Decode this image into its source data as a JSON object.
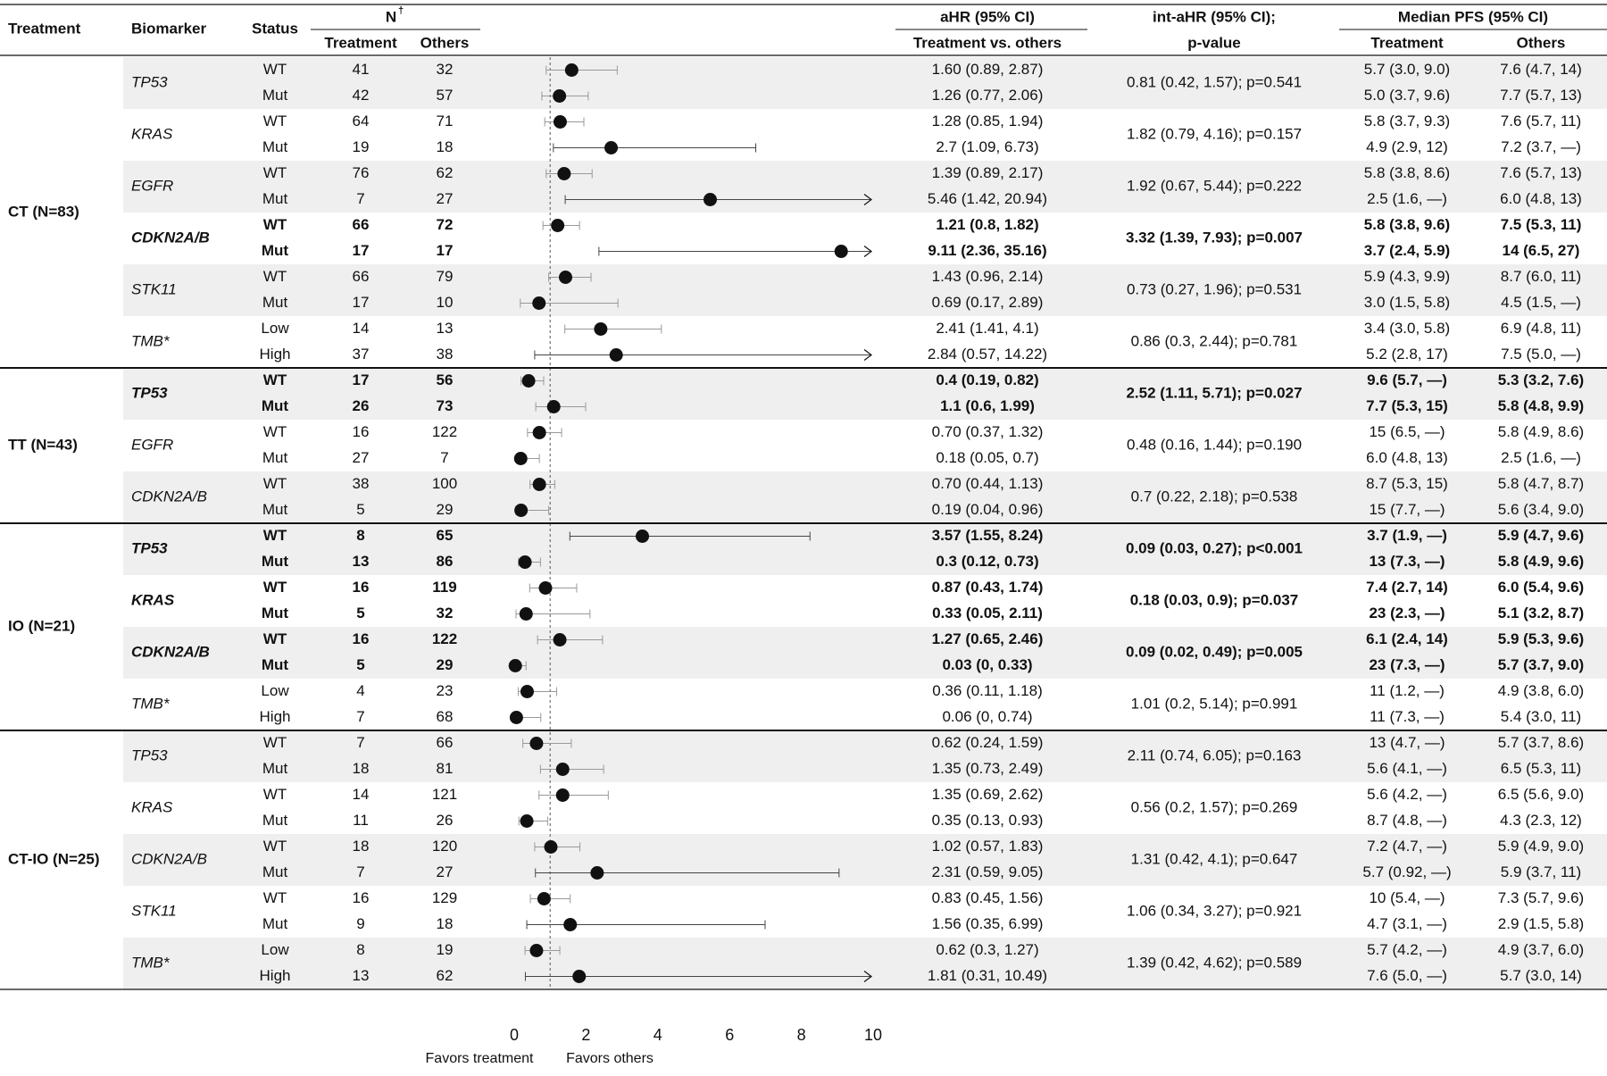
{
  "headers": {
    "treatment": "Treatment",
    "biomarker": "Biomarker",
    "status": "Status",
    "n": "N",
    "n_sup": "†",
    "n_treatment": "Treatment",
    "n_others": "Others",
    "ahr": "aHR (95% CI)",
    "ahr_sub": "Treatment vs. others",
    "intahr": "int-aHR (95% CI);",
    "intahr_sub": "p-value",
    "pfs": "Median PFS (95% CI)",
    "pfs_treatment": "Treatment",
    "pfs_others": "Others"
  },
  "chart_data": {
    "type": "forest",
    "title": "",
    "x_range": [
      0,
      10
    ],
    "x_ticks": [
      "0",
      "2",
      "4",
      "6",
      "8",
      "10"
    ],
    "reference_line": 1,
    "xlabel_left": "Favors treatment",
    "xlabel_right": "Favors others",
    "groups": [
      {
        "label": "CT (N=83)",
        "biomarkers": [
          {
            "name": "TP53",
            "bold": false,
            "int_ahr": "0.81 (0.42, 1.57); p=0.541",
            "rows": [
              {
                "status": "WT",
                "n_t": "41",
                "n_o": "32",
                "ahr": "1.60 (0.89, 2.87)",
                "est": 1.6,
                "lo": 0.89,
                "hi": 2.87,
                "pfs_t": "5.7 (3.0, 9.0)",
                "pfs_o": "7.6 (4.7, 14)"
              },
              {
                "status": "Mut",
                "n_t": "42",
                "n_o": "57",
                "ahr": "1.26 (0.77, 2.06)",
                "est": 1.26,
                "lo": 0.77,
                "hi": 2.06,
                "pfs_t": "5.0 (3.7, 9.6)",
                "pfs_o": "7.7 (5.7, 13)"
              }
            ]
          },
          {
            "name": "KRAS",
            "bold": false,
            "int_ahr": "1.82 (0.79, 4.16); p=0.157",
            "rows": [
              {
                "status": "WT",
                "n_t": "64",
                "n_o": "71",
                "ahr": "1.28 (0.85, 1.94)",
                "est": 1.28,
                "lo": 0.85,
                "hi": 1.94,
                "pfs_t": "5.8 (3.7, 9.3)",
                "pfs_o": "7.6 (5.7, 11)"
              },
              {
                "status": "Mut",
                "n_t": "19",
                "n_o": "18",
                "ahr": "2.7 (1.09, 6.73)",
                "est": 2.7,
                "lo": 1.09,
                "hi": 6.73,
                "pfs_t": "4.9 (2.9, 12)",
                "pfs_o": "7.2 (3.7, —)"
              }
            ]
          },
          {
            "name": "EGFR",
            "bold": false,
            "int_ahr": "1.92 (0.67, 5.44); p=0.222",
            "rows": [
              {
                "status": "WT",
                "n_t": "76",
                "n_o": "62",
                "ahr": "1.39 (0.89, 2.17)",
                "est": 1.39,
                "lo": 0.89,
                "hi": 2.17,
                "pfs_t": "5.8 (3.8, 8.6)",
                "pfs_o": "7.6 (5.7, 13)"
              },
              {
                "status": "Mut",
                "n_t": "7",
                "n_o": "27",
                "ahr": "5.46 (1.42, 20.94)",
                "est": 5.46,
                "lo": 1.42,
                "hi": 20.94,
                "pfs_t": "2.5 (1.6, —)",
                "pfs_o": "6.0 (4.8, 13)"
              }
            ]
          },
          {
            "name": "CDKN2A/B",
            "bold": true,
            "int_ahr": "3.32 (1.39, 7.93); p=0.007",
            "rows": [
              {
                "status": "WT",
                "n_t": "66",
                "n_o": "72",
                "ahr": "1.21 (0.8, 1.82)",
                "est": 1.21,
                "lo": 0.8,
                "hi": 1.82,
                "pfs_t": "5.8 (3.8, 9.6)",
                "pfs_o": "7.5 (5.3, 11)"
              },
              {
                "status": "Mut",
                "n_t": "17",
                "n_o": "17",
                "ahr": "9.11 (2.36, 35.16)",
                "est": 9.11,
                "lo": 2.36,
                "hi": 35.16,
                "pfs_t": "3.7 (2.4, 5.9)",
                "pfs_o": "14 (6.5, 27)"
              }
            ]
          },
          {
            "name": "STK11",
            "bold": false,
            "int_ahr": "0.73 (0.27, 1.96); p=0.531",
            "rows": [
              {
                "status": "WT",
                "n_t": "66",
                "n_o": "79",
                "ahr": "1.43 (0.96, 2.14)",
                "est": 1.43,
                "lo": 0.96,
                "hi": 2.14,
                "pfs_t": "5.9 (4.3, 9.9)",
                "pfs_o": "8.7 (6.0, 11)"
              },
              {
                "status": "Mut",
                "n_t": "17",
                "n_o": "10",
                "ahr": "0.69 (0.17, 2.89)",
                "est": 0.69,
                "lo": 0.17,
                "hi": 2.89,
                "pfs_t": "3.0 (1.5, 5.8)",
                "pfs_o": "4.5 (1.5, —)"
              }
            ]
          },
          {
            "name": "TMB*",
            "bold": false,
            "int_ahr": "0.86 (0.3, 2.44); p=0.781",
            "rows": [
              {
                "status": "Low",
                "n_t": "14",
                "n_o": "13",
                "ahr": "2.41 (1.41, 4.1)",
                "est": 2.41,
                "lo": 1.41,
                "hi": 4.1,
                "pfs_t": "3.4 (3.0, 5.8)",
                "pfs_o": "6.9 (4.8, 11)"
              },
              {
                "status": "High",
                "n_t": "37",
                "n_o": "38",
                "ahr": "2.84 (0.57, 14.22)",
                "est": 2.84,
                "lo": 0.57,
                "hi": 14.22,
                "pfs_t": "5.2 (2.8, 17)",
                "pfs_o": "7.5 (5.0, —)"
              }
            ]
          }
        ]
      },
      {
        "label": "TT (N=43)",
        "biomarkers": [
          {
            "name": "TP53",
            "bold": true,
            "int_ahr": "2.52 (1.11, 5.71); p=0.027",
            "rows": [
              {
                "status": "WT",
                "n_t": "17",
                "n_o": "56",
                "ahr": "0.4 (0.19, 0.82)",
                "est": 0.4,
                "lo": 0.19,
                "hi": 0.82,
                "pfs_t": "9.6 (5.7, —)",
                "pfs_o": "5.3 (3.2, 7.6)"
              },
              {
                "status": "Mut",
                "n_t": "26",
                "n_o": "73",
                "ahr": "1.1 (0.6, 1.99)",
                "est": 1.1,
                "lo": 0.6,
                "hi": 1.99,
                "pfs_t": "7.7 (5.3, 15)",
                "pfs_o": "5.8 (4.8, 9.9)"
              }
            ]
          },
          {
            "name": "EGFR",
            "bold": false,
            "int_ahr": "0.48 (0.16, 1.44); p=0.190",
            "rows": [
              {
                "status": "WT",
                "n_t": "16",
                "n_o": "122",
                "ahr": "0.70 (0.37, 1.32)",
                "est": 0.7,
                "lo": 0.37,
                "hi": 1.32,
                "pfs_t": "15 (6.5, —)",
                "pfs_o": "5.8 (4.9, 8.6)"
              },
              {
                "status": "Mut",
                "n_t": "27",
                "n_o": "7",
                "ahr": "0.18 (0.05, 0.7)",
                "est": 0.18,
                "lo": 0.05,
                "hi": 0.7,
                "pfs_t": "6.0 (4.8, 13)",
                "pfs_o": "2.5 (1.6, —)"
              }
            ]
          },
          {
            "name": "CDKN2A/B",
            "bold": false,
            "int_ahr": "0.7 (0.22, 2.18); p=0.538",
            "rows": [
              {
                "status": "WT",
                "n_t": "38",
                "n_o": "100",
                "ahr": "0.70 (0.44, 1.13)",
                "est": 0.7,
                "lo": 0.44,
                "hi": 1.13,
                "pfs_t": "8.7 (5.3, 15)",
                "pfs_o": "5.8 (4.7, 8.7)"
              },
              {
                "status": "Mut",
                "n_t": "5",
                "n_o": "29",
                "ahr": "0.19 (0.04, 0.96)",
                "est": 0.19,
                "lo": 0.04,
                "hi": 0.96,
                "pfs_t": "15 (7.7, —)",
                "pfs_o": "5.6 (3.4, 9.0)"
              }
            ]
          }
        ]
      },
      {
        "label": "IO (N=21)",
        "biomarkers": [
          {
            "name": "TP53",
            "bold": true,
            "int_ahr": "0.09 (0.03, 0.27); p<0.001",
            "rows": [
              {
                "status": "WT",
                "n_t": "8",
                "n_o": "65",
                "ahr": "3.57 (1.55, 8.24)",
                "est": 3.57,
                "lo": 1.55,
                "hi": 8.24,
                "pfs_t": "3.7 (1.9, —)",
                "pfs_o": "5.9 (4.7, 9.6)"
              },
              {
                "status": "Mut",
                "n_t": "13",
                "n_o": "86",
                "ahr": "0.3 (0.12, 0.73)",
                "est": 0.3,
                "lo": 0.12,
                "hi": 0.73,
                "pfs_t": "13 (7.3, —)",
                "pfs_o": "5.8 (4.9, 9.6)"
              }
            ]
          },
          {
            "name": "KRAS",
            "bold": true,
            "int_ahr": "0.18 (0.03, 0.9); p=0.037",
            "rows": [
              {
                "status": "WT",
                "n_t": "16",
                "n_o": "119",
                "ahr": "0.87 (0.43, 1.74)",
                "est": 0.87,
                "lo": 0.43,
                "hi": 1.74,
                "pfs_t": "7.4 (2.7, 14)",
                "pfs_o": "6.0 (5.4, 9.6)"
              },
              {
                "status": "Mut",
                "n_t": "5",
                "n_o": "32",
                "ahr": "0.33 (0.05, 2.11)",
                "est": 0.33,
                "lo": 0.05,
                "hi": 2.11,
                "pfs_t": "23 (2.3, —)",
                "pfs_o": "5.1 (3.2, 8.7)"
              }
            ]
          },
          {
            "name": "CDKN2A/B",
            "bold": true,
            "int_ahr": "0.09 (0.02, 0.49); p=0.005",
            "rows": [
              {
                "status": "WT",
                "n_t": "16",
                "n_o": "122",
                "ahr": "1.27 (0.65, 2.46)",
                "est": 1.27,
                "lo": 0.65,
                "hi": 2.46,
                "pfs_t": "6.1 (2.4, 14)",
                "pfs_o": "5.9 (5.3, 9.6)"
              },
              {
                "status": "Mut",
                "n_t": "5",
                "n_o": "29",
                "ahr": "0.03 (0, 0.33)",
                "est": 0.03,
                "lo": 0,
                "hi": 0.33,
                "pfs_t": "23 (7.3, —)",
                "pfs_o": "5.7 (3.7, 9.0)"
              }
            ]
          },
          {
            "name": "TMB*",
            "bold": false,
            "int_ahr": "1.01 (0.2, 5.14); p=0.991",
            "rows": [
              {
                "status": "Low",
                "n_t": "4",
                "n_o": "23",
                "ahr": "0.36 (0.11, 1.18)",
                "est": 0.36,
                "lo": 0.11,
                "hi": 1.18,
                "pfs_t": "11 (1.2, —)",
                "pfs_o": "4.9 (3.8, 6.0)"
              },
              {
                "status": "High",
                "n_t": "7",
                "n_o": "68",
                "ahr": "0.06 (0, 0.74)",
                "est": 0.06,
                "lo": 0,
                "hi": 0.74,
                "pfs_t": "11 (7.3, —)",
                "pfs_o": "5.4 (3.0, 11)"
              }
            ]
          }
        ]
      },
      {
        "label": "CT-IO (N=25)",
        "biomarkers": [
          {
            "name": "TP53",
            "bold": false,
            "int_ahr": "2.11 (0.74, 6.05); p=0.163",
            "rows": [
              {
                "status": "WT",
                "n_t": "7",
                "n_o": "66",
                "ahr": "0.62 (0.24, 1.59)",
                "est": 0.62,
                "lo": 0.24,
                "hi": 1.59,
                "pfs_t": "13 (4.7, —)",
                "pfs_o": "5.7 (3.7, 8.6)"
              },
              {
                "status": "Mut",
                "n_t": "18",
                "n_o": "81",
                "ahr": "1.35 (0.73, 2.49)",
                "est": 1.35,
                "lo": 0.73,
                "hi": 2.49,
                "pfs_t": "5.6 (4.1, —)",
                "pfs_o": "6.5 (5.3, 11)"
              }
            ]
          },
          {
            "name": "KRAS",
            "bold": false,
            "int_ahr": "0.56 (0.2, 1.57); p=0.269",
            "rows": [
              {
                "status": "WT",
                "n_t": "14",
                "n_o": "121",
                "ahr": "1.35 (0.69, 2.62)",
                "est": 1.35,
                "lo": 0.69,
                "hi": 2.62,
                "pfs_t": "5.6 (4.2, —)",
                "pfs_o": "6.5 (5.6, 9.0)"
              },
              {
                "status": "Mut",
                "n_t": "11",
                "n_o": "26",
                "ahr": "0.35 (0.13, 0.93)",
                "est": 0.35,
                "lo": 0.13,
                "hi": 0.93,
                "pfs_t": "8.7 (4.8, —)",
                "pfs_o": "4.3 (2.3, 12)"
              }
            ]
          },
          {
            "name": "CDKN2A/B",
            "bold": false,
            "int_ahr": "1.31 (0.42, 4.1); p=0.647",
            "rows": [
              {
                "status": "WT",
                "n_t": "18",
                "n_o": "120",
                "ahr": "1.02 (0.57, 1.83)",
                "est": 1.02,
                "lo": 0.57,
                "hi": 1.83,
                "pfs_t": "7.2 (4.7, —)",
                "pfs_o": "5.9 (4.9, 9.0)"
              },
              {
                "status": "Mut",
                "n_t": "7",
                "n_o": "27",
                "ahr": "2.31 (0.59, 9.05)",
                "est": 2.31,
                "lo": 0.59,
                "hi": 9.05,
                "pfs_t": "5.7 (0.92, —)",
                "pfs_o": "5.9 (3.7, 11)"
              }
            ]
          },
          {
            "name": "STK11",
            "bold": false,
            "int_ahr": "1.06 (0.34, 3.27); p=0.921",
            "rows": [
              {
                "status": "WT",
                "n_t": "16",
                "n_o": "129",
                "ahr": "0.83 (0.45, 1.56)",
                "est": 0.83,
                "lo": 0.45,
                "hi": 1.56,
                "pfs_t": "10 (5.4, —)",
                "pfs_o": "7.3 (5.7, 9.6)"
              },
              {
                "status": "Mut",
                "n_t": "9",
                "n_o": "18",
                "ahr": "1.56 (0.35, 6.99)",
                "est": 1.56,
                "lo": 0.35,
                "hi": 6.99,
                "pfs_t": "4.7 (3.1, —)",
                "pfs_o": "2.9 (1.5, 5.8)"
              }
            ]
          },
          {
            "name": "TMB*",
            "bold": false,
            "int_ahr": "1.39 (0.42, 4.62); p=0.589",
            "rows": [
              {
                "status": "Low",
                "n_t": "8",
                "n_o": "19",
                "ahr": "0.62 (0.3, 1.27)",
                "est": 0.62,
                "lo": 0.3,
                "hi": 1.27,
                "pfs_t": "5.7 (4.2, —)",
                "pfs_o": "4.9 (3.7, 6.0)"
              },
              {
                "status": "High",
                "n_t": "13",
                "n_o": "62",
                "ahr": "1.81 (0.31, 10.49)",
                "est": 1.81,
                "lo": 0.31,
                "hi": 10.49,
                "pfs_t": "7.6 (5.0, —)",
                "pfs_o": "5.7 (3.0, 14)"
              }
            ]
          }
        ]
      }
    ]
  }
}
